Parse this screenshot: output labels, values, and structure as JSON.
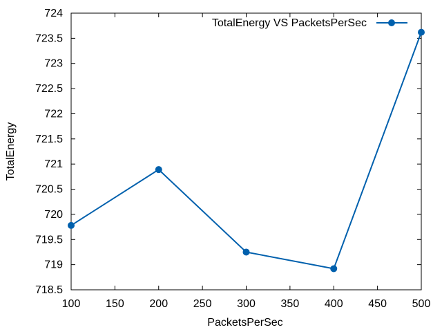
{
  "chart_data": {
    "type": "line",
    "title": "",
    "xlabel": "PacketsPerSec",
    "ylabel": "TotalEnergy",
    "xlim": [
      100,
      500
    ],
    "ylim": [
      718.5,
      724
    ],
    "xticks": [
      "100",
      "150",
      "200",
      "250",
      "300",
      "350",
      "400",
      "450",
      "500"
    ],
    "yticks": [
      "718.5",
      "719",
      "719.5",
      "720",
      "720.5",
      "721",
      "721.5",
      "722",
      "722.5",
      "723",
      "723.5",
      "724"
    ],
    "grid": false,
    "legend_position": "top-right",
    "series": [
      {
        "name": "TotalEnergy VS PacketsPerSec",
        "color": "#0060ad",
        "marker": "circle",
        "x": [
          100,
          200,
          300,
          400,
          500
        ],
        "y": [
          719.78,
          720.89,
          719.25,
          718.92,
          723.62
        ]
      }
    ]
  }
}
